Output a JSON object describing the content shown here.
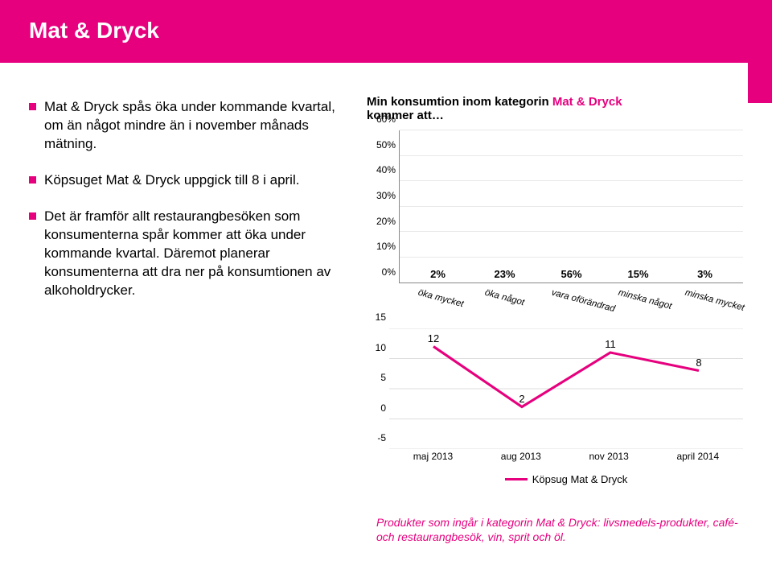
{
  "header": {
    "title": "Mat & Dryck"
  },
  "bullets": [
    "Mat & Dryck spås öka under kommande kvartal, om än något mindre än i november månads mätning.",
    "Köpsuget Mat & Dryck uppgick till 8 i april.",
    "Det är framför allt restaurangbesöken som konsumenterna spår kommer att öka under kommande kvartal. Däremot planerar konsumenterna att dra ner på konsumtionen av alkoholdrycker."
  ],
  "bar_chart": {
    "title_prefix": "Min konsumtion inom kategorin ",
    "title_accent": "Mat & Dryck",
    "title_suffix": " kommer att…",
    "categories": [
      "öka mycket",
      "öka något",
      "vara oförändrad",
      "minska något",
      "minska mycket"
    ],
    "values": [
      2,
      23,
      56,
      15,
      3
    ],
    "value_labels": [
      "2%",
      "23%",
      "56%",
      "15%",
      "3%"
    ],
    "bar_color": "#c4d600",
    "ymax": 60,
    "ytick_step": 10,
    "yticks": [
      "0%",
      "10%",
      "20%",
      "30%",
      "40%",
      "50%",
      "60%"
    ],
    "grid_color": "#e8e8e8",
    "label_fontsize": 12
  },
  "line_chart": {
    "x_labels": [
      "maj 2013",
      "aug 2013",
      "nov 2013",
      "april 2014"
    ],
    "values": [
      12,
      2,
      11,
      8
    ],
    "ymin": -5,
    "ymax": 15,
    "yticks": [
      -5,
      0,
      5,
      10,
      15
    ],
    "line_color": "#e6007e",
    "line_width": 3,
    "grid_color": "#dddddd",
    "legend_label": "Köpsug Mat & Dryck"
  },
  "footnote": "Produkter som ingår i kategorin Mat & Dryck: livsmedels-produkter, café- och restaurangbesök, vin, sprit och öl.",
  "colors": {
    "magenta": "#e6007e",
    "lime": "#c4d600",
    "white": "#ffffff",
    "black": "#000000"
  }
}
